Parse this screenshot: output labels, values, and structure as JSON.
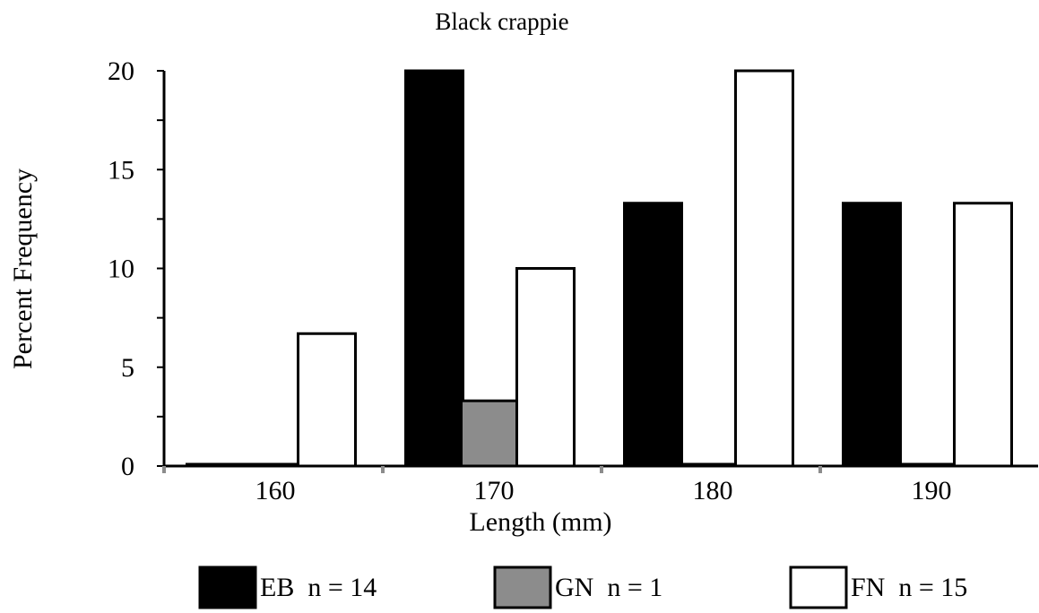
{
  "chart_data": {
    "type": "bar",
    "title": "Black crappie",
    "xlabel": "Length (mm)",
    "ylabel": "Percent Frequency",
    "categories": [
      "160",
      "170",
      "180",
      "190"
    ],
    "ylim": [
      0,
      20
    ],
    "yticks": [
      0,
      5,
      10,
      15,
      20
    ],
    "grid": false,
    "legend_position": "bottom",
    "series": [
      {
        "name": "EB  n = 14",
        "color": "#000000",
        "values": [
          0,
          20,
          13.3,
          13.3
        ]
      },
      {
        "name": "GN  n = 1",
        "color": "#8c8c8c",
        "values": [
          0,
          3.3,
          0,
          0
        ]
      },
      {
        "name": "FN  n = 15",
        "color": "#ffffff",
        "values": [
          6.7,
          10,
          20,
          13.3
        ]
      }
    ]
  }
}
